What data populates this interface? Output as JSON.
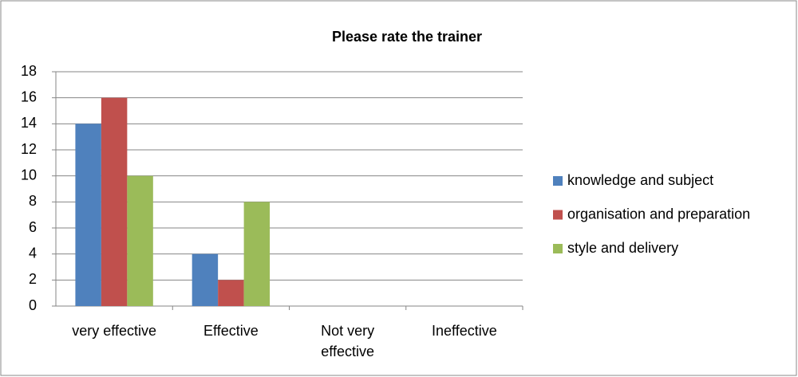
{
  "chart_data": {
    "type": "bar",
    "title": "Please rate the trainer",
    "categories": [
      "very effective",
      "Effective",
      "Not very effective",
      "Ineffective"
    ],
    "series": [
      {
        "name": "knowledge and subject",
        "color": "#4f81bd",
        "values": [
          14,
          4,
          0,
          0
        ]
      },
      {
        "name": "organisation and preparation",
        "color": "#c0504d",
        "values": [
          16,
          2,
          0,
          0
        ]
      },
      {
        "name": "style and delivery",
        "color": "#9bbb59",
        "values": [
          10,
          8,
          0,
          0
        ]
      }
    ],
    "ylim": [
      0,
      18
    ],
    "yticks": [
      0,
      2,
      4,
      6,
      8,
      10,
      12,
      14,
      16,
      18
    ],
    "grid": true,
    "legend": "right"
  }
}
